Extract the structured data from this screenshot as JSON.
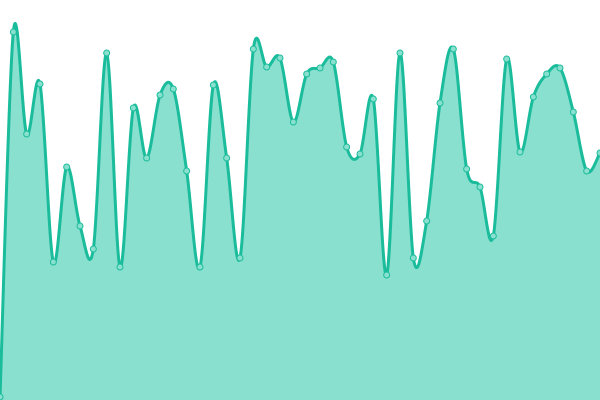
{
  "chart_data": {
    "type": "area",
    "title": "",
    "xlabel": "",
    "ylabel": "",
    "grid": false,
    "ylim": [
      0,
      400
    ],
    "x": [
      0,
      1,
      2,
      3,
      4,
      5,
      6,
      7,
      8,
      9,
      10,
      11,
      12,
      13,
      14,
      15,
      16,
      17,
      18,
      19,
      20,
      21,
      22,
      23,
      24,
      25,
      26,
      27,
      28,
      29,
      30,
      31,
      32,
      33,
      34,
      35,
      36,
      37,
      38,
      39,
      40,
      41,
      42,
      43,
      44,
      45
    ],
    "values": [
      3,
      368,
      266,
      316,
      138,
      233,
      174,
      151,
      347,
      133,
      292,
      242,
      305,
      311,
      229,
      133,
      315,
      242,
      142,
      351,
      333,
      342,
      278,
      326,
      332,
      338,
      253,
      246,
      301,
      125,
      347,
      142,
      179,
      297,
      351,
      231,
      213,
      164,
      341,
      248,
      303,
      326,
      332,
      288,
      229,
      247
    ],
    "colors": {
      "line": "#1abc9c",
      "fill": "#8ae0ce",
      "marker": "#8ae0ce"
    }
  }
}
